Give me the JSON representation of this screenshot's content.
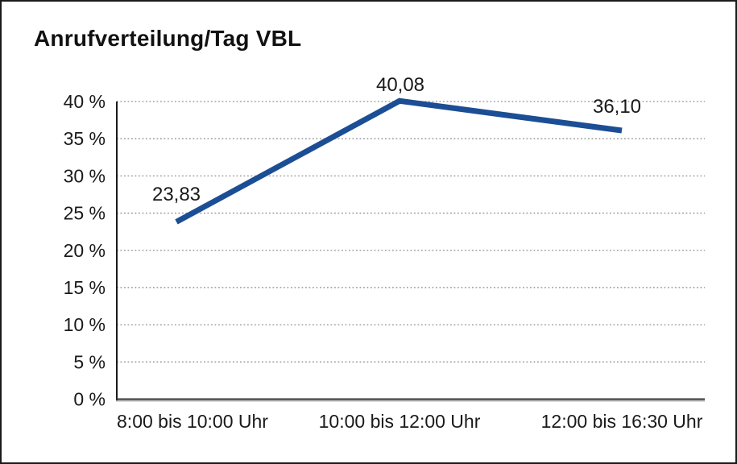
{
  "chart_data": {
    "type": "line",
    "title": "Anrufverteilung/Tag VBL",
    "categories": [
      "8:00 bis 10:00 Uhr",
      "10:00 bis 12:00 Uhr",
      "12:00 bis 16:30 Uhr"
    ],
    "series": [
      {
        "name": "Anrufverteilung",
        "values": [
          23.83,
          40.08,
          36.1
        ],
        "value_labels": [
          "23,83",
          "40,08",
          "36,10"
        ]
      }
    ],
    "xlabel": "",
    "ylabel": "",
    "ylim": [
      0,
      40
    ],
    "ytick_step": 5,
    "ytick_labels": [
      "0 %",
      "5 %",
      "10 %",
      "15 %",
      "20 %",
      "25 %",
      "30 %",
      "35 %",
      "40 %"
    ],
    "grid": "horizontal dotted lines at every 5%",
    "legend_position": "none",
    "colors": {
      "line": "#1b4e94",
      "gridline": "#8f8f8f",
      "axis": "#1a1a1a",
      "frame_border": "#1a1a1a",
      "text": "#1a1a1a",
      "background": "#ffffff"
    }
  }
}
